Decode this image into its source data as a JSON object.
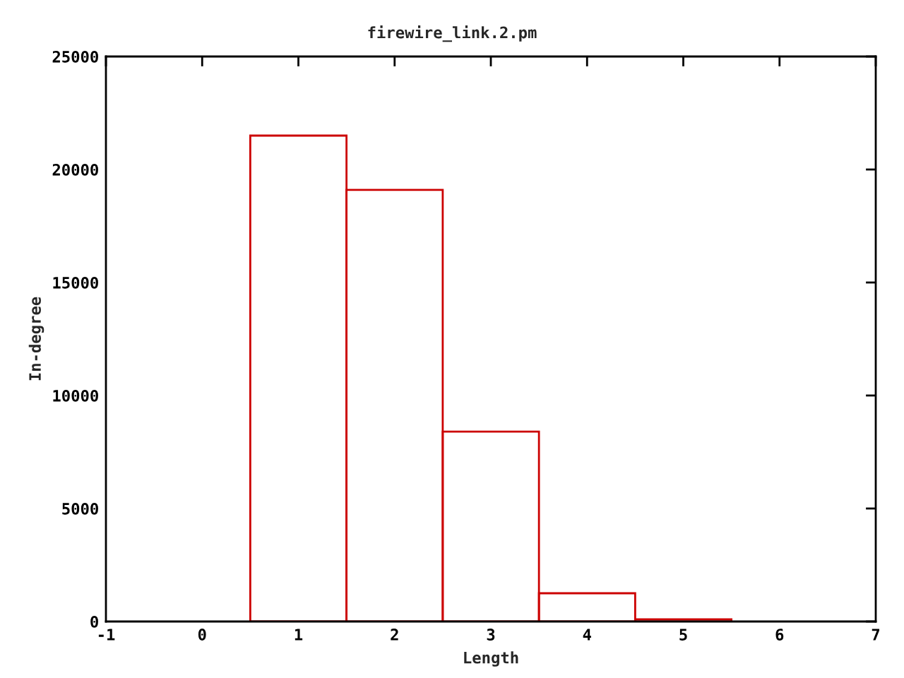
{
  "chart_data": {
    "type": "histogram",
    "title": "firewire_link.2.pm",
    "xlabel": "Length",
    "ylabel": "In-degree",
    "bins": [
      0.5,
      1.5,
      2.5,
      3.5,
      4.5,
      5.5
    ],
    "values": [
      21500,
      19100,
      8400,
      1250,
      100
    ],
    "color": "#cc0000",
    "xlim": [
      -1,
      7
    ],
    "xticks": [
      -1,
      0,
      1,
      2,
      3,
      4,
      5,
      6,
      7
    ],
    "ylim": [
      0,
      25000
    ],
    "yticks": [
      0,
      5000,
      10000,
      15000,
      20000,
      25000
    ],
    "grid": false,
    "legend": false
  }
}
